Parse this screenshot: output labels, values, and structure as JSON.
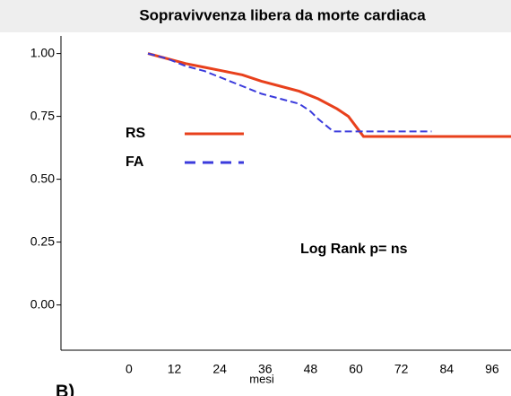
{
  "chart_data": {
    "type": "line",
    "title": "Sopravivvenza libera da morte cardiaca",
    "x_label": "mesi",
    "annotation": "Log Rank p= ns",
    "panel_label": "B)",
    "xlim": [
      -18,
      101
    ],
    "xticks": [
      0,
      12,
      24,
      36,
      48,
      60,
      72,
      84,
      96
    ],
    "ylim": [
      -0.18,
      1.07
    ],
    "yticks": [
      {
        "value": 0,
        "label": "0.00"
      },
      {
        "value": 0.25,
        "label": "0.25"
      },
      {
        "value": 0.5,
        "label": "0.50"
      },
      {
        "value": 0.75,
        "label": "0.75"
      },
      {
        "value": 1,
        "label": "1.00"
      }
    ],
    "series": [
      {
        "name": "RS",
        "color": "#e8401c",
        "dash": false,
        "x": [
          5,
          10,
          15,
          20,
          25,
          30,
          35,
          40,
          45,
          50,
          55,
          58,
          60,
          62,
          101
        ],
        "values": [
          1.0,
          0.98,
          0.96,
          0.945,
          0.93,
          0.915,
          0.89,
          0.87,
          0.85,
          0.82,
          0.78,
          0.75,
          0.71,
          0.67,
          0.67
        ]
      },
      {
        "name": "FA",
        "color": "#3b3bdc",
        "dash": true,
        "x": [
          5,
          10,
          15,
          20,
          25,
          30,
          35,
          40,
          45,
          48,
          50,
          54,
          60,
          65,
          70,
          80
        ],
        "values": [
          1.0,
          0.98,
          0.95,
          0.93,
          0.9,
          0.87,
          0.84,
          0.82,
          0.8,
          0.77,
          0.74,
          0.69,
          0.69,
          0.69,
          0.69,
          0.69
        ]
      }
    ]
  }
}
